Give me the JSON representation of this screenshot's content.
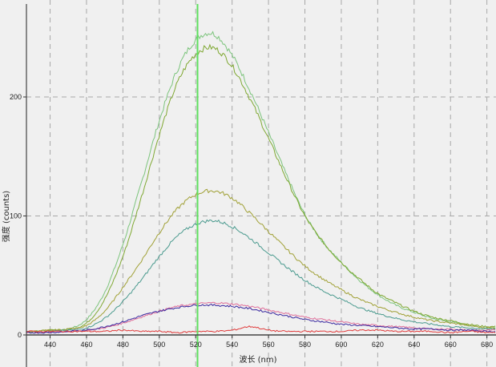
{
  "chart_data": {
    "type": "line",
    "title": "",
    "xlabel": "波长 (nm)",
    "ylabel": "强度 (counts)",
    "xlim": [
      427,
      685
    ],
    "ylim": [
      -25,
      281
    ],
    "xticks": [
      440,
      460,
      480,
      500,
      520,
      540,
      560,
      580,
      600,
      620,
      640,
      660,
      680
    ],
    "yticks": [
      0,
      100,
      200
    ],
    "grid": true,
    "grid_style": "dashed",
    "marker_line": {
      "x": 521,
      "color": "#5ee05e"
    },
    "x": [
      430,
      440,
      450,
      460,
      470,
      480,
      490,
      500,
      510,
      520,
      530,
      540,
      550,
      560,
      570,
      580,
      590,
      600,
      610,
      620,
      630,
      640,
      650,
      660,
      670,
      680
    ],
    "series": [
      {
        "color": "#7cc47c",
        "values": [
          3,
          4,
          5,
          13,
          36,
          76,
          127,
          180,
          223,
          248,
          253,
          235,
          205,
          170,
          134,
          101,
          78,
          61,
          46,
          34,
          25,
          19,
          14,
          11,
          8,
          6
        ]
      },
      {
        "color": "#7fa832",
        "values": [
          3,
          4,
          5,
          10,
          30,
          66,
          115,
          168,
          212,
          236,
          241,
          226,
          198,
          165,
          131,
          100,
          78,
          61,
          47,
          35,
          27,
          20,
          15,
          12,
          9,
          7
        ]
      },
      {
        "color": "#a0a035",
        "values": [
          3,
          4,
          5,
          8,
          20,
          40,
          62,
          86,
          106,
          118,
          121,
          115,
          102,
          87,
          72,
          58,
          47,
          38,
          30,
          24,
          19,
          15,
          12,
          10,
          8,
          6
        ]
      },
      {
        "color": "#4a9a8e",
        "values": [
          2,
          3,
          4,
          6,
          14,
          28,
          46,
          66,
          83,
          93,
          96,
          91,
          81,
          69,
          57,
          46,
          37,
          30,
          23,
          18,
          14,
          11,
          9,
          7,
          6,
          5
        ]
      },
      {
        "color": "#e0709a",
        "values": [
          2,
          2,
          3,
          4,
          6,
          10,
          15,
          20,
          24,
          26,
          27,
          26,
          24,
          21,
          18,
          15,
          13,
          11,
          9,
          8,
          7,
          6,
          5,
          5,
          4,
          4
        ]
      },
      {
        "color": "#3a2aa0",
        "values": [
          2,
          2,
          3,
          4,
          7,
          11,
          16,
          20,
          23,
          25,
          25,
          24,
          22,
          19,
          16,
          13,
          11,
          9,
          8,
          7,
          6,
          5,
          5,
          4,
          4,
          3
        ]
      },
      {
        "color": "#e03a3a",
        "values": [
          3,
          3,
          3,
          3,
          3,
          4,
          3,
          3,
          2,
          3,
          3,
          4,
          7,
          4,
          3,
          3,
          3,
          3,
          4,
          4,
          3,
          3,
          3,
          2,
          3,
          2
        ]
      }
    ]
  }
}
